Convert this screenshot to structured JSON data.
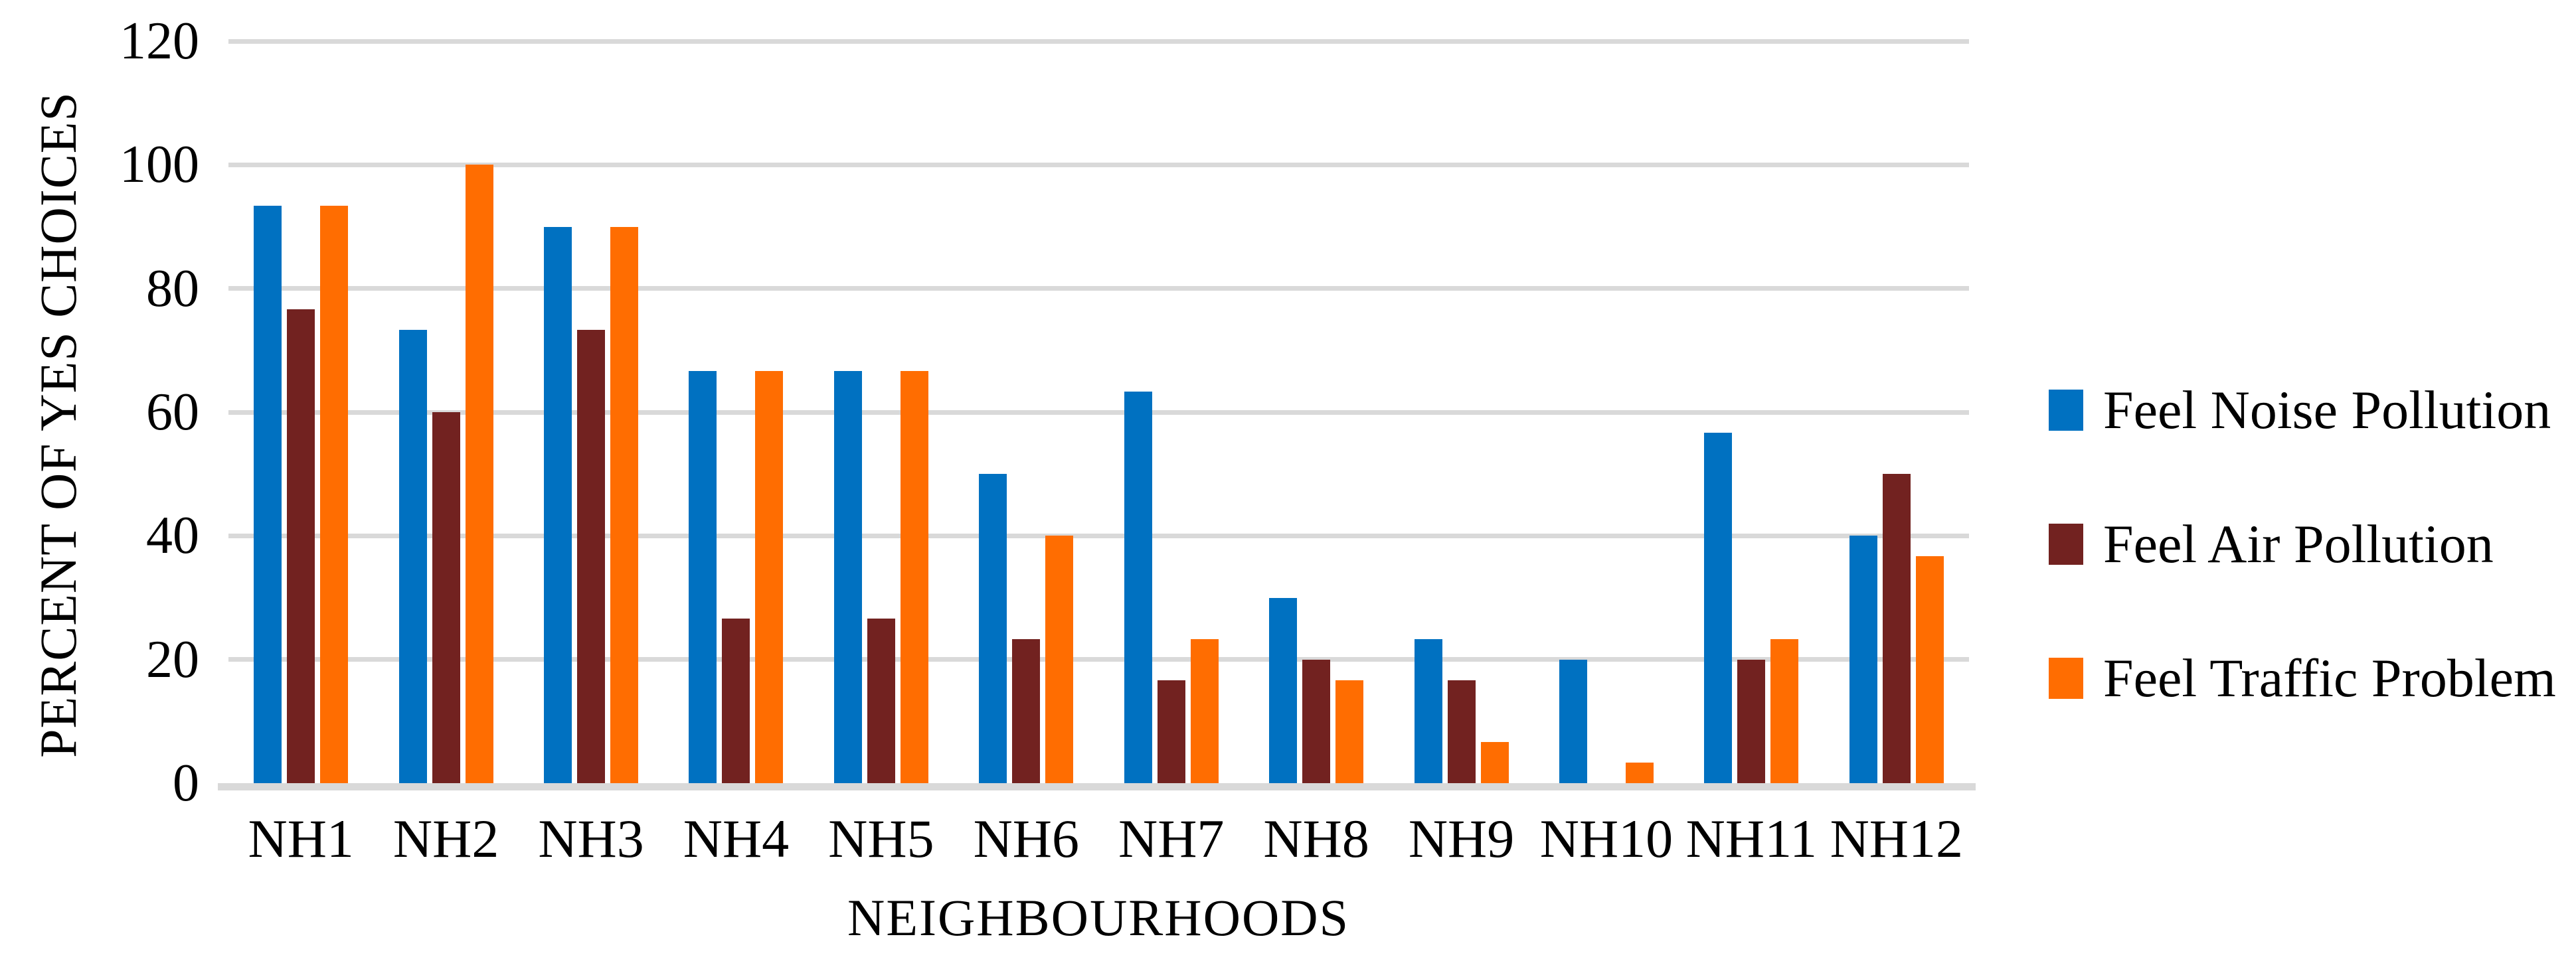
{
  "chart_data": {
    "type": "bar",
    "title": "",
    "xlabel": "NEIGHBOURHOODS",
    "ylabel": "PERCENT OF YES CHOICES",
    "categories": [
      "NH1",
      "NH2",
      "NH3",
      "NH4",
      "NH5",
      "NH6",
      "NH7",
      "NH8",
      "NH9",
      "NH10",
      "NH11",
      "NH12"
    ],
    "series": [
      {
        "name": "Feel Noise Pollution",
        "color": "#0071C1",
        "values": [
          93.33,
          73.33,
          90,
          66.67,
          66.67,
          50,
          63.33,
          30,
          23.33,
          20,
          56.67,
          40
        ]
      },
      {
        "name": "Feel Air Pollution",
        "color": "#722220",
        "values": [
          76.67,
          60,
          73.33,
          26.67,
          26.67,
          23.33,
          16.67,
          20,
          16.67,
          0,
          20,
          50
        ]
      },
      {
        "name": "Feel Traffic Problem",
        "color": "#FF6D01",
        "values": [
          93.33,
          100,
          90,
          66.67,
          66.67,
          40,
          23.33,
          16.67,
          6.67,
          3.33,
          23.33,
          36.67
        ]
      }
    ],
    "ylim": [
      0,
      120
    ],
    "yticks": [
      0,
      20,
      40,
      60,
      80,
      100,
      120
    ],
    "grid": true,
    "gridline_color": "#D9D9D9",
    "axis_line_color": "#D9D9D9",
    "text_color": "#000000",
    "background": "#FFFFFF",
    "legend_position": "right"
  }
}
